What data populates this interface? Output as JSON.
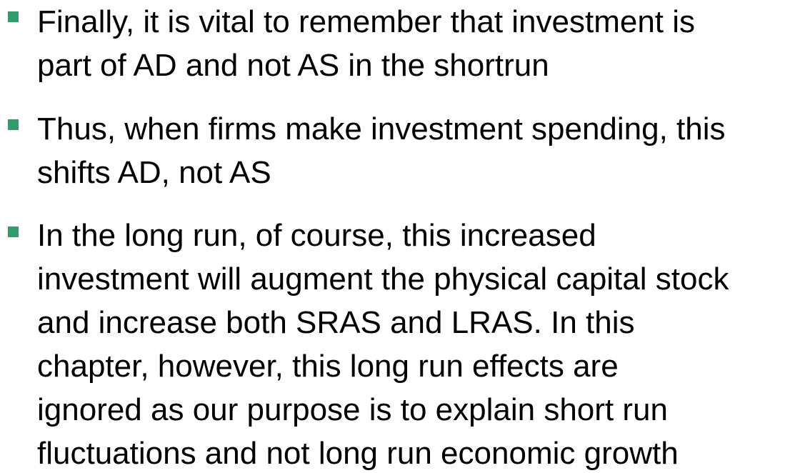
{
  "bullets": [
    {
      "text": "Finally, it is vital to remember that investment is\npart of AD and not AS in the shortrun"
    },
    {
      "text": "Thus, when firms make investment spending, this\nshifts AD, not AS"
    },
    {
      "text": "In the long run, of course, this increased\ninvestment will augment the physical capital stock\nand increase both SRAS and LRAS. In this\nchapter, however, this long run effects are\nignored as our purpose is to explain short run\nfluctuations and not long run economic growth"
    }
  ],
  "colors": {
    "bullet": "#2e9e6b",
    "text": "#000000",
    "background": "#ffffff"
  }
}
